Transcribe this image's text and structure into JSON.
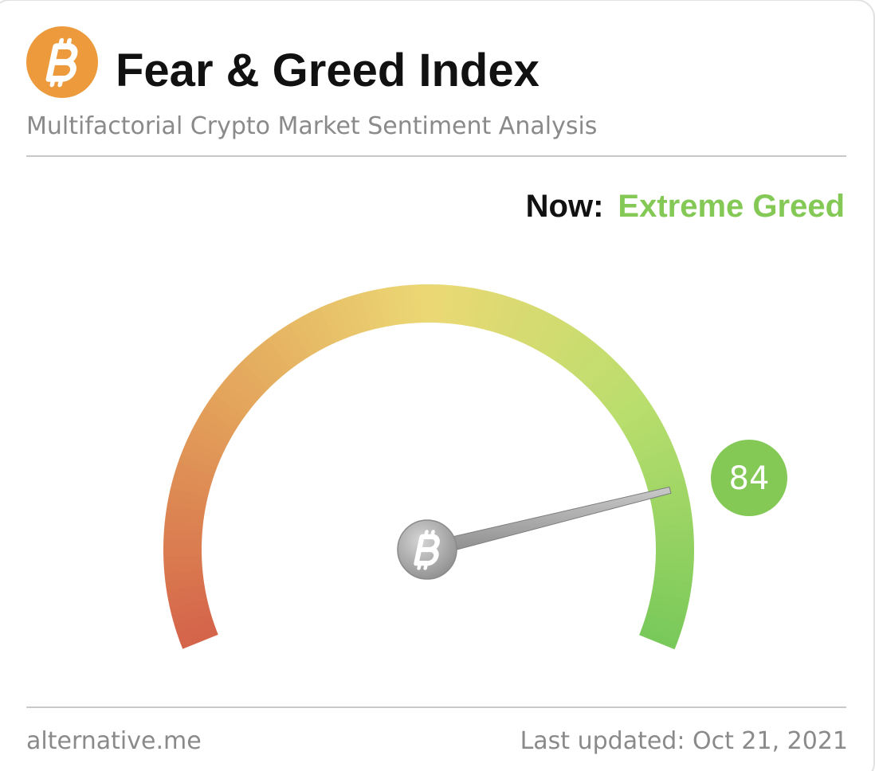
{
  "chart_data": {
    "type": "gauge",
    "title": "Fear & Greed Index",
    "subtitle": "Multifactorial Crypto Market Sentiment Analysis",
    "now_label": "Now:",
    "status": "Extreme Greed",
    "value": 84,
    "ylim": [
      0,
      100
    ],
    "color": "#84c956",
    "source": "alternative.me",
    "updated": "Last updated: Oct 21, 2021"
  }
}
